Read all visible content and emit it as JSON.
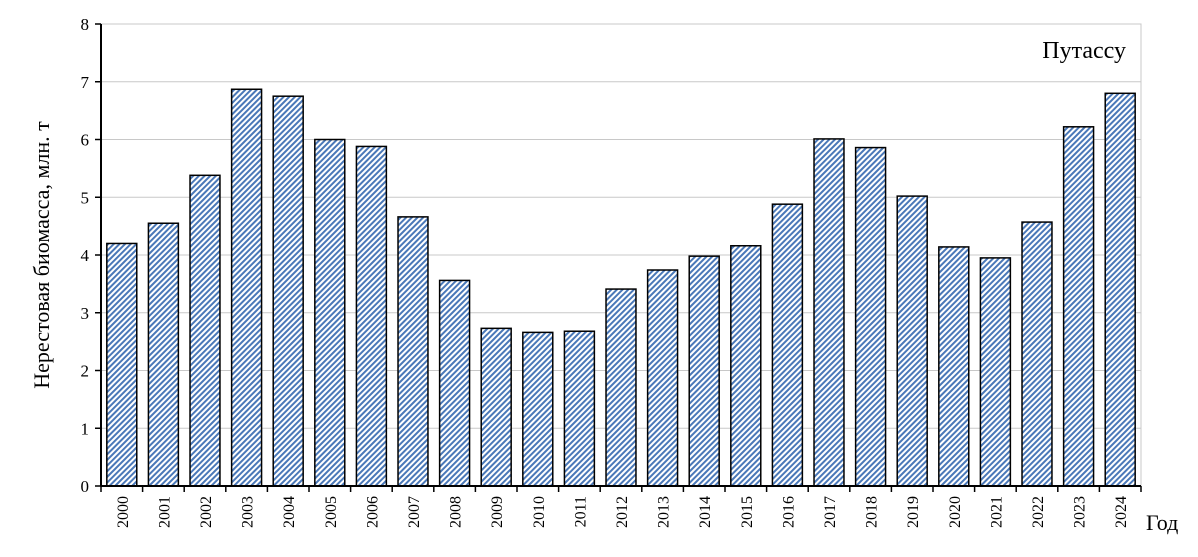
{
  "chart_data": {
    "type": "bar",
    "title": "",
    "xlabel": "Год",
    "ylabel": "Нерестовая биомасса, млн. т",
    "series": [
      {
        "name": "Путассу",
        "values": [
          4.2,
          4.55,
          5.38,
          6.87,
          6.75,
          6.0,
          5.88,
          4.66,
          3.56,
          2.73,
          2.66,
          2.68,
          3.41,
          3.74,
          3.98,
          4.16,
          4.88,
          6.01,
          5.86,
          5.02,
          4.14,
          3.95,
          4.57,
          6.22,
          6.8
        ]
      }
    ],
    "categories": [
      "2000",
      "2001",
      "2002",
      "2003",
      "2004",
      "2005",
      "2006",
      "2007",
      "2008",
      "2009",
      "2010",
      "2011",
      "2012",
      "2013",
      "2014",
      "2015",
      "2016",
      "2017",
      "2018",
      "2019",
      "2020",
      "2021",
      "2022",
      "2023",
      "2024"
    ],
    "yticks": [
      "0",
      "1",
      "2",
      "3",
      "4",
      "5",
      "6",
      "7",
      "8"
    ],
    "ylim": [
      0,
      8
    ],
    "grid": true,
    "legend_position": "top-right",
    "colors": {
      "bar_pattern_fg": "#4a78b8",
      "bar_pattern_bg": "#ffffff",
      "grid": "#c8c8c8",
      "axis": "#000000"
    }
  }
}
